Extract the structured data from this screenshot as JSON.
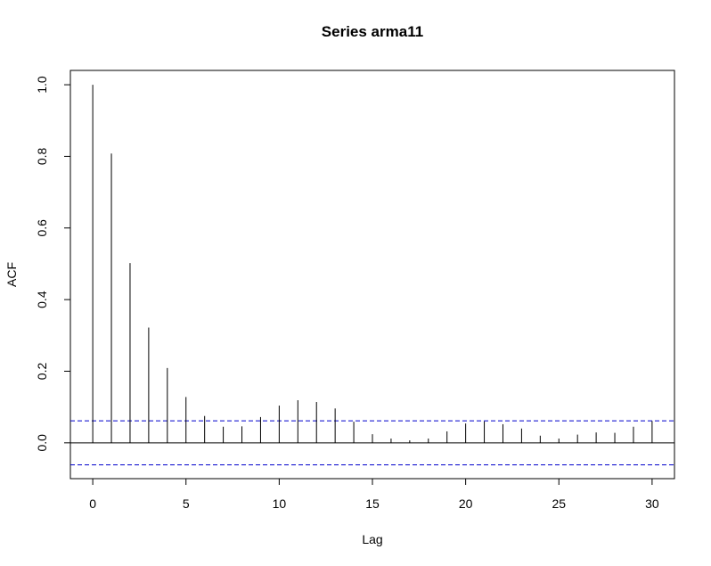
{
  "chart_data": {
    "type": "bar",
    "title": "Series  arma11",
    "xlabel": "Lag",
    "ylabel": "ACF",
    "xlim": [
      -1.2,
      31.2
    ],
    "ylim": [
      -0.1,
      1.04
    ],
    "x_ticks": [
      0,
      5,
      10,
      15,
      20,
      25,
      30
    ],
    "x_tick_labels": [
      "0",
      "5",
      "10",
      "15",
      "20",
      "25",
      "30"
    ],
    "y_ticks": [
      0.0,
      0.2,
      0.4,
      0.6,
      0.8,
      1.0
    ],
    "y_tick_labels": [
      "0.0",
      "0.2",
      "0.4",
      "0.6",
      "0.8",
      "1.0"
    ],
    "lags": [
      0,
      1,
      2,
      3,
      4,
      5,
      6,
      7,
      8,
      9,
      10,
      11,
      12,
      13,
      14,
      15,
      16,
      17,
      18,
      19,
      20,
      21,
      22,
      23,
      24,
      25,
      26,
      27,
      28,
      29,
      30
    ],
    "values": [
      1.0,
      0.808,
      0.502,
      0.322,
      0.209,
      0.128,
      0.075,
      0.045,
      0.046,
      0.072,
      0.104,
      0.119,
      0.114,
      0.096,
      0.059,
      0.024,
      0.012,
      0.007,
      0.012,
      0.032,
      0.054,
      0.06,
      0.052,
      0.04,
      0.02,
      0.012,
      0.023,
      0.029,
      0.028,
      0.045,
      0.061
    ],
    "confidence_bound": 0.0615,
    "colors": {
      "bars": "#000000",
      "zero_line": "#000000",
      "confidence_lines": "#0000cc",
      "frame": "#000000"
    },
    "grid": false
  }
}
